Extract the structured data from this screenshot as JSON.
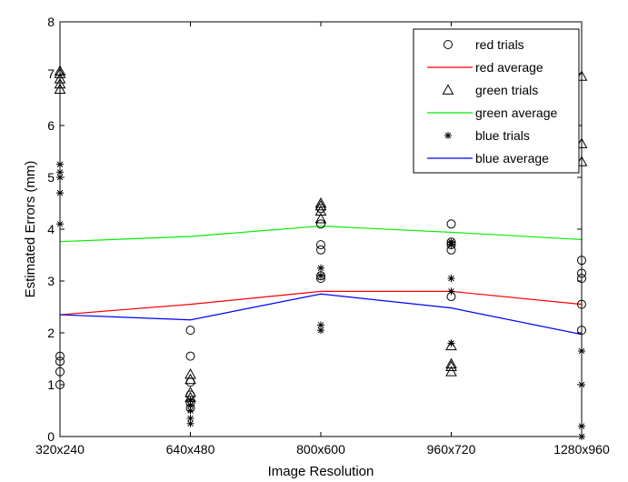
{
  "chart_data": {
    "type": "scatter",
    "xlabel": "Image Resolution",
    "ylabel": "Estimated Errors (mm)",
    "categories": [
      "320x240",
      "640x480",
      "800x600",
      "960x720",
      "1280x960"
    ],
    "ylim": [
      0,
      8
    ],
    "yticks": [
      0,
      1,
      2,
      3,
      4,
      5,
      6,
      7,
      8
    ],
    "legend_position": "top-right",
    "legend": [
      {
        "label": "red trials",
        "kind": "marker",
        "marker": "circle"
      },
      {
        "label": "red average",
        "kind": "line",
        "color": "#ff0000"
      },
      {
        "label": "green trials",
        "kind": "marker",
        "marker": "triangle"
      },
      {
        "label": "green average",
        "kind": "line",
        "color": "#00ee00"
      },
      {
        "label": "blue trials",
        "kind": "marker",
        "marker": "star"
      },
      {
        "label": "blue average",
        "kind": "line",
        "color": "#0000ff"
      }
    ],
    "averages": [
      {
        "name": "red average",
        "color": "#ff0000",
        "values": [
          2.35,
          2.55,
          2.8,
          2.8,
          2.55
        ]
      },
      {
        "name": "green average",
        "color": "#00ee00",
        "values": [
          3.76,
          3.86,
          4.06,
          3.94,
          3.8
        ]
      },
      {
        "name": "blue average",
        "color": "#0000ff",
        "values": [
          2.35,
          2.25,
          2.75,
          2.48,
          1.97
        ]
      }
    ],
    "trials": [
      {
        "name": "red trials",
        "marker": "circle",
        "values": [
          [
            1.0,
            1.25,
            1.45,
            1.55
          ],
          [
            0.55,
            0.65,
            0.8,
            1.05,
            1.55,
            2.05
          ],
          [
            3.05,
            3.1,
            3.6,
            3.7,
            4.1,
            4.4
          ],
          [
            2.7,
            3.6,
            3.7,
            3.75,
            4.1
          ],
          [
            2.05,
            2.55,
            3.05,
            3.15,
            3.4
          ]
        ]
      },
      {
        "name": "green trials",
        "marker": "triangle",
        "values": [
          [
            6.7,
            6.8,
            6.9,
            7.0,
            7.05
          ],
          [
            0.75,
            0.85,
            1.1,
            1.2
          ],
          [
            4.2,
            4.35,
            4.45,
            4.5
          ],
          [
            1.25,
            1.35,
            1.4,
            1.75
          ],
          [
            5.3,
            5.65,
            6.95
          ]
        ]
      },
      {
        "name": "blue trials",
        "marker": "star",
        "values": [
          [
            4.1,
            4.7,
            5.0,
            5.1,
            5.25
          ],
          [
            0.25,
            0.35,
            0.5,
            0.6,
            0.7
          ],
          [
            2.05,
            2.15,
            3.1,
            3.25
          ],
          [
            1.8,
            2.8,
            3.05,
            3.7,
            3.75
          ],
          [
            0.0,
            0.2,
            1.0,
            1.65
          ]
        ]
      }
    ]
  }
}
